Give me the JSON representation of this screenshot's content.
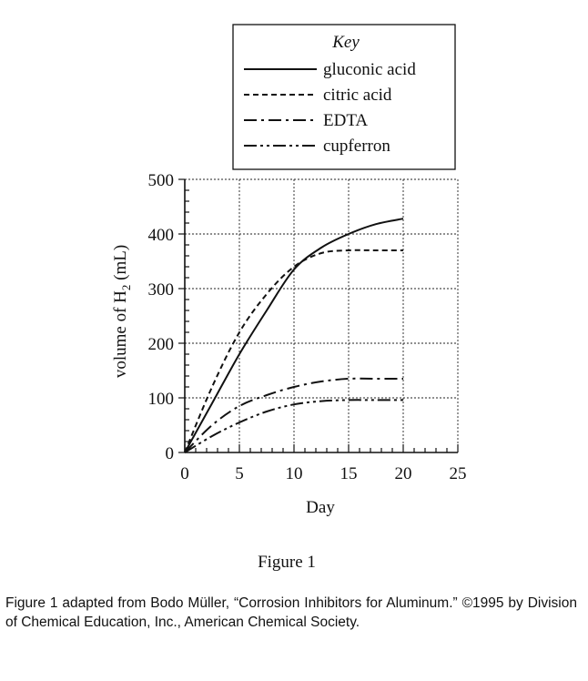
{
  "chart_data": {
    "type": "line",
    "title": "",
    "xlabel": "Day",
    "ylabel": "volume of H",
    "ylabel_subscript": "2",
    "ylabel_unit": " (mL)",
    "xlim": [
      0,
      25
    ],
    "ylim": [
      0,
      500
    ],
    "xticks": [
      0,
      5,
      10,
      15,
      20,
      25
    ],
    "yticks": [
      0,
      100,
      200,
      300,
      400,
      500
    ],
    "grid": true,
    "legend_title": "Key",
    "legend_position": "top-right",
    "series": [
      {
        "name": "gluconic acid",
        "style": "solid",
        "x": [
          0,
          2.5,
          5,
          7.5,
          10,
          12.5,
          15,
          17.5,
          20
        ],
        "y": [
          0,
          90,
          180,
          260,
          335,
          375,
          400,
          418,
          428
        ]
      },
      {
        "name": "citric acid",
        "style": "dashed",
        "x": [
          0,
          2.5,
          5,
          7.5,
          10,
          12.5,
          15,
          17.5,
          20
        ],
        "y": [
          0,
          120,
          220,
          290,
          340,
          365,
          370,
          370,
          370
        ]
      },
      {
        "name": "EDTA",
        "style": "dashdot",
        "x": [
          0,
          2.5,
          5,
          7.5,
          10,
          12.5,
          15,
          17.5,
          20
        ],
        "y": [
          0,
          50,
          85,
          105,
          120,
          130,
          135,
          135,
          135
        ]
      },
      {
        "name": "cupferron",
        "style": "dashdotdot",
        "x": [
          0,
          2.5,
          5,
          7.5,
          10,
          12.5,
          15,
          17.5,
          20
        ],
        "y": [
          0,
          30,
          55,
          75,
          88,
          94,
          96,
          96,
          96
        ]
      }
    ]
  },
  "figure_label": "Figure 1",
  "source_caption": "Figure 1 adapted from Bodo Müller, “Corrosion Inhibitors for Aluminum.” ©1995 by Division of Chemical Education, Inc., American Chemical Society."
}
